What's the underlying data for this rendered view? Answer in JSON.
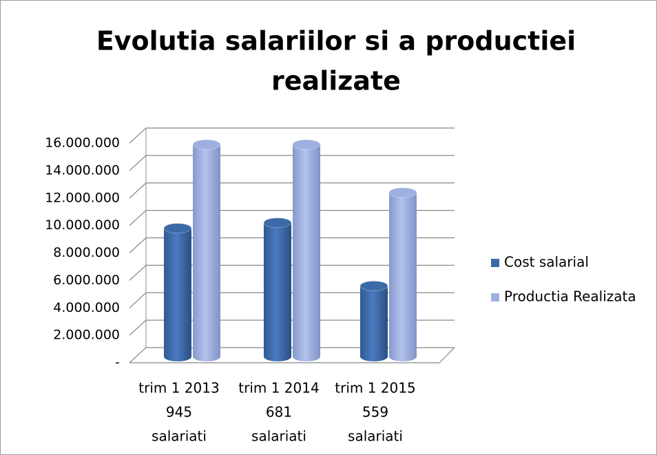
{
  "chart_data": {
    "type": "bar3d",
    "title": [
      "Evolutia salariilor si a productiei",
      "realizate"
    ],
    "categories": [
      [
        "trim 1 2013",
        "945",
        "salariati"
      ],
      [
        "trim 1 2014",
        "681",
        "salariati"
      ],
      [
        "trim 1 2015",
        "559",
        "salariati"
      ]
    ],
    "series": [
      {
        "name": "Cost salarial",
        "color": "#3c6aa6",
        "values": [
          9600000,
          10000000,
          5400000
        ]
      },
      {
        "name": "Productia Realizata",
        "color": "#9db0e0",
        "values": [
          15700000,
          15700000,
          12200000
        ]
      }
    ],
    "ylim": [
      0,
      16000000
    ],
    "yticks": [
      {
        "value": 0,
        "label": "-"
      },
      {
        "value": 2000000,
        "label": "2.000.000"
      },
      {
        "value": 4000000,
        "label": "4.000.000"
      },
      {
        "value": 6000000,
        "label": "6.000.000"
      },
      {
        "value": 8000000,
        "label": "8.000.000"
      },
      {
        "value": 10000000,
        "label": "10.000.000"
      },
      {
        "value": 12000000,
        "label": "12.000.000"
      },
      {
        "value": 14000000,
        "label": "14.000.000"
      },
      {
        "value": 16000000,
        "label": "16.000.000"
      }
    ],
    "grid": true,
    "legend": "right"
  }
}
